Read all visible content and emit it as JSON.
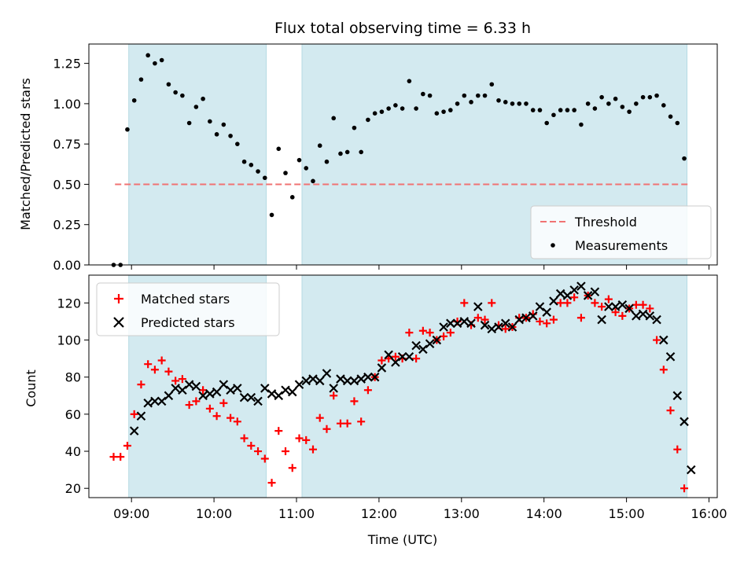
{
  "chart_data": [
    {
      "type": "scatter",
      "title": "Flux total observing time = 6.33 h",
      "xlabel": "",
      "ylabel": "Matched/Predicted stars",
      "xlim": [
        "08:29",
        "16:06"
      ],
      "ylim": [
        0,
        1.37
      ],
      "yticks": [
        0.0,
        0.25,
        0.5,
        0.75,
        1.0,
        1.25
      ],
      "ytick_labels": [
        "0.00",
        "0.25",
        "0.50",
        "0.75",
        "1.00",
        "1.25"
      ],
      "shaded_intervals": [
        [
          "08:58",
          "10:38"
        ],
        [
          "11:04",
          "15:44"
        ]
      ],
      "shade_color": "#d3eaf0",
      "legend": {
        "position": "lower right",
        "entries": [
          "Threshold",
          "Measurements"
        ]
      },
      "series": [
        {
          "name": "Threshold",
          "style": "dashed-line",
          "color": "#f07373",
          "x": [
            "08:48",
            "15:45"
          ],
          "y": [
            0.5,
            0.5
          ]
        },
        {
          "name": "Measurements",
          "style": "dot",
          "color": "#000000",
          "x": [
            "08:47",
            "08:52",
            "08:57",
            "09:02",
            "09:07",
            "09:12",
            "09:17",
            "09:22",
            "09:27",
            "09:32",
            "09:37",
            "09:42",
            "09:47",
            "09:52",
            "09:57",
            "10:02",
            "10:07",
            "10:12",
            "10:17",
            "10:22",
            "10:27",
            "10:32",
            "10:37",
            "10:42",
            "10:47",
            "10:52",
            "10:57",
            "11:02",
            "11:07",
            "11:12",
            "11:17",
            "11:22",
            "11:27",
            "11:32",
            "11:37",
            "11:42",
            "11:47",
            "11:52",
            "11:57",
            "12:02",
            "12:07",
            "12:12",
            "12:17",
            "12:22",
            "12:27",
            "12:32",
            "12:37",
            "12:42",
            "12:47",
            "12:52",
            "12:57",
            "13:02",
            "13:07",
            "13:12",
            "13:17",
            "13:22",
            "13:27",
            "13:32",
            "13:37",
            "13:42",
            "13:47",
            "13:52",
            "13:57",
            "14:02",
            "14:07",
            "14:12",
            "14:17",
            "14:22",
            "14:27",
            "14:32",
            "14:37",
            "14:42",
            "14:47",
            "14:52",
            "14:57",
            "15:02",
            "15:07",
            "15:12",
            "15:17",
            "15:22",
            "15:27",
            "15:32",
            "15:37",
            "15:42"
          ],
          "y": [
            0.0,
            0.0,
            0.84,
            1.02,
            1.15,
            1.3,
            1.25,
            1.27,
            1.12,
            1.07,
            1.05,
            0.88,
            0.98,
            1.03,
            0.89,
            0.81,
            0.87,
            0.8,
            0.75,
            0.64,
            0.62,
            0.58,
            0.54,
            0.31,
            0.72,
            0.57,
            0.42,
            0.65,
            0.6,
            0.52,
            0.74,
            0.64,
            0.91,
            0.69,
            0.7,
            0.85,
            0.7,
            0.9,
            0.94,
            0.95,
            0.97,
            0.99,
            0.97,
            1.14,
            0.97,
            1.06,
            1.05,
            0.94,
            0.95,
            0.96,
            1.0,
            1.05,
            1.01,
            1.05,
            1.05,
            1.12,
            1.02,
            1.01,
            1.0,
            1.0,
            1.0,
            0.96,
            0.96,
            0.88,
            0.93,
            0.96,
            0.96,
            0.96,
            0.87,
            1.0,
            0.97,
            1.04,
            1.0,
            1.03,
            0.98,
            0.95,
            1.0,
            1.04,
            1.04,
            1.05,
            0.99,
            0.92,
            0.88,
            0.66
          ]
        }
      ]
    },
    {
      "type": "scatter",
      "title": "",
      "xlabel": "Time (UTC)",
      "ylabel": "Count",
      "xlim": [
        "08:29",
        "16:06"
      ],
      "ylim": [
        15,
        135
      ],
      "yticks": [
        20,
        40,
        60,
        80,
        100,
        120
      ],
      "xticks": [
        "09:00",
        "10:00",
        "11:00",
        "12:00",
        "13:00",
        "14:00",
        "15:00",
        "16:00"
      ],
      "shaded_intervals": [
        [
          "08:58",
          "10:38"
        ],
        [
          "11:04",
          "15:44"
        ]
      ],
      "shade_color": "#d3eaf0",
      "legend": {
        "position": "upper left",
        "entries": [
          "Matched stars",
          "Predicted stars"
        ]
      },
      "series": [
        {
          "name": "Matched stars",
          "marker": "plus",
          "color": "#ff0000",
          "x": [
            "08:47",
            "08:52",
            "08:57",
            "09:02",
            "09:07",
            "09:12",
            "09:17",
            "09:22",
            "09:27",
            "09:32",
            "09:37",
            "09:42",
            "09:47",
            "09:52",
            "09:57",
            "10:02",
            "10:07",
            "10:12",
            "10:17",
            "10:22",
            "10:27",
            "10:32",
            "10:37",
            "10:42",
            "10:47",
            "10:52",
            "10:57",
            "11:02",
            "11:07",
            "11:12",
            "11:17",
            "11:22",
            "11:27",
            "11:32",
            "11:37",
            "11:42",
            "11:47",
            "11:52",
            "11:57",
            "12:02",
            "12:07",
            "12:12",
            "12:17",
            "12:22",
            "12:27",
            "12:32",
            "12:37",
            "12:42",
            "12:47",
            "12:52",
            "12:57",
            "13:02",
            "13:07",
            "13:12",
            "13:17",
            "13:22",
            "13:27",
            "13:32",
            "13:37",
            "13:42",
            "13:47",
            "13:52",
            "13:57",
            "14:02",
            "14:07",
            "14:12",
            "14:17",
            "14:22",
            "14:27",
            "14:32",
            "14:37",
            "14:42",
            "14:47",
            "14:52",
            "14:57",
            "15:02",
            "15:07",
            "15:12",
            "15:17",
            "15:22",
            "15:27",
            "15:32",
            "15:37",
            "15:42"
          ],
          "y": [
            37,
            37,
            43,
            60,
            76,
            87,
            84,
            89,
            83,
            78,
            79,
            65,
            67,
            73,
            63,
            59,
            66,
            58,
            56,
            47,
            43,
            40,
            36,
            23,
            51,
            40,
            31,
            47,
            46,
            41,
            58,
            52,
            70,
            55,
            55,
            67,
            56,
            73,
            80,
            89,
            90,
            91,
            90,
            104,
            90,
            105,
            104,
            100,
            102,
            104,
            110,
            120,
            108,
            112,
            111,
            120,
            108,
            106,
            107,
            112,
            112,
            114,
            110,
            109,
            111,
            120,
            120,
            123,
            112,
            124,
            120,
            118,
            122,
            115,
            113,
            117,
            119,
            119,
            117,
            100,
            84,
            62,
            41,
            20
          ]
        },
        {
          "name": "Predicted stars",
          "marker": "x",
          "color": "#000000",
          "x": [
            "09:02",
            "09:07",
            "09:12",
            "09:17",
            "09:22",
            "09:27",
            "09:32",
            "09:37",
            "09:42",
            "09:47",
            "09:52",
            "09:57",
            "10:02",
            "10:07",
            "10:12",
            "10:17",
            "10:22",
            "10:27",
            "10:32",
            "10:37",
            "10:42",
            "10:47",
            "10:52",
            "10:57",
            "11:02",
            "11:07",
            "11:12",
            "11:17",
            "11:22",
            "11:27",
            "11:32",
            "11:37",
            "11:42",
            "11:47",
            "11:52",
            "11:57",
            "12:02",
            "12:07",
            "12:12",
            "12:17",
            "12:22",
            "12:27",
            "12:32",
            "12:37",
            "12:42",
            "12:47",
            "12:52",
            "12:57",
            "13:02",
            "13:07",
            "13:12",
            "13:17",
            "13:22",
            "13:27",
            "13:32",
            "13:37",
            "13:42",
            "13:47",
            "13:52",
            "13:57",
            "14:02",
            "14:07",
            "14:12",
            "14:17",
            "14:22",
            "14:27",
            "14:32",
            "14:37",
            "14:42",
            "14:47",
            "14:52",
            "14:57",
            "15:02",
            "15:07",
            "15:12",
            "15:17",
            "15:22",
            "15:27",
            "15:32",
            "15:37",
            "15:42",
            "15:47"
          ],
          "y": [
            51,
            59,
            66,
            67,
            67,
            70,
            74,
            73,
            76,
            75,
            70,
            71,
            72,
            76,
            73,
            74,
            69,
            69,
            67,
            74,
            71,
            70,
            73,
            72,
            76,
            78,
            79,
            78,
            82,
            74,
            79,
            78,
            78,
            79,
            80,
            80,
            85,
            92,
            88,
            91,
            91,
            97,
            95,
            98,
            100,
            107,
            109,
            109,
            110,
            109,
            118,
            108,
            106,
            107,
            109,
            107,
            111,
            112,
            113,
            118,
            115,
            121,
            125,
            124,
            127,
            129,
            124,
            126,
            111,
            118,
            118,
            119,
            117,
            113,
            114,
            113,
            111,
            100,
            91,
            70,
            56,
            30
          ]
        }
      ]
    }
  ]
}
